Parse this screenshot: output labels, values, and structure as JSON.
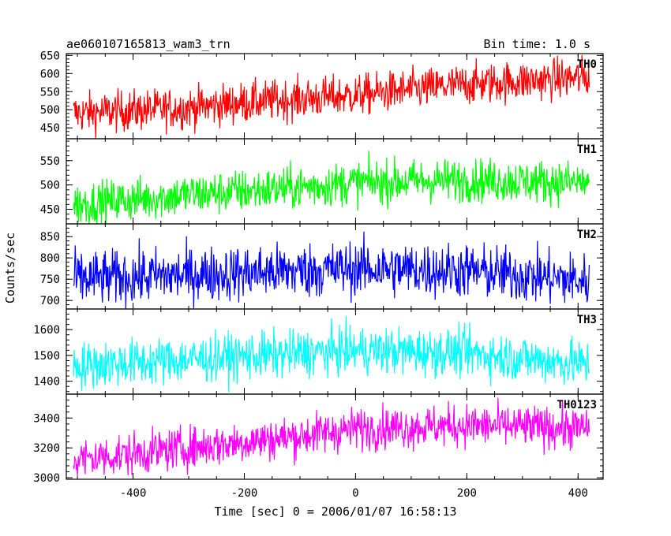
{
  "header": {
    "title": "ae060107165813_wam3_trn",
    "bin_time": "Bin time: 1.0 s"
  },
  "axes": {
    "ylabel": "Counts/sec",
    "xlabel": "Time [sec] 0 = 2006/01/07 16:58:13",
    "xlim": [
      -520,
      445
    ],
    "xticks": [
      -400,
      -200,
      0,
      200,
      400
    ]
  },
  "chart_data": [
    {
      "type": "line",
      "name": "TH0",
      "color": "#ff0000",
      "ylim": [
        420,
        655
      ],
      "yticks": [
        450,
        500,
        550,
        600,
        650
      ],
      "x_range": [
        -507,
        420
      ],
      "trend": [
        [
          -507,
          490
        ],
        [
          -300,
          505
        ],
        [
          -200,
          520
        ],
        [
          0,
          540
        ],
        [
          200,
          570
        ],
        [
          420,
          590
        ]
      ],
      "spread": 28,
      "grid": false
    },
    {
      "type": "line",
      "name": "TH1",
      "color": "#00ff00",
      "ylim": [
        420,
        595
      ],
      "yticks": [
        450,
        500,
        550
      ],
      "x_range": [
        -507,
        420
      ],
      "trend": [
        [
          -507,
          460
        ],
        [
          -300,
          480
        ],
        [
          -100,
          495
        ],
        [
          0,
          505
        ],
        [
          200,
          510
        ],
        [
          420,
          505
        ]
      ],
      "spread": 22,
      "grid": false
    },
    {
      "type": "line",
      "name": "TH2",
      "color": "#0000ff",
      "ylim": [
        680,
        880
      ],
      "yticks": [
        700,
        750,
        800,
        850
      ],
      "x_range": [
        -507,
        420
      ],
      "trend": [
        [
          -507,
          750
        ],
        [
          -200,
          765
        ],
        [
          0,
          775
        ],
        [
          200,
          770
        ],
        [
          420,
          745
        ]
      ],
      "spread": 32,
      "grid": false
    },
    {
      "type": "line",
      "name": "TH3",
      "color": "#00ffff",
      "ylim": [
        1350,
        1680
      ],
      "yticks": [
        1400,
        1500,
        1600
      ],
      "x_range": [
        -507,
        420
      ],
      "trend": [
        [
          -507,
          1460
        ],
        [
          -250,
          1490
        ],
        [
          0,
          1520
        ],
        [
          200,
          1510
        ],
        [
          420,
          1465
        ]
      ],
      "spread": 45,
      "grid": false
    },
    {
      "type": "line",
      "name": "TH0123",
      "color": "#ff00ff",
      "ylim": [
        2990,
        3560
      ],
      "yticks": [
        3000,
        3200,
        3400
      ],
      "x_range": [
        -507,
        420
      ],
      "trend": [
        [
          -507,
          3120
        ],
        [
          -300,
          3200
        ],
        [
          -100,
          3280
        ],
        [
          0,
          3330
        ],
        [
          200,
          3350
        ],
        [
          420,
          3330
        ]
      ],
      "spread": 70,
      "grid": false
    }
  ]
}
